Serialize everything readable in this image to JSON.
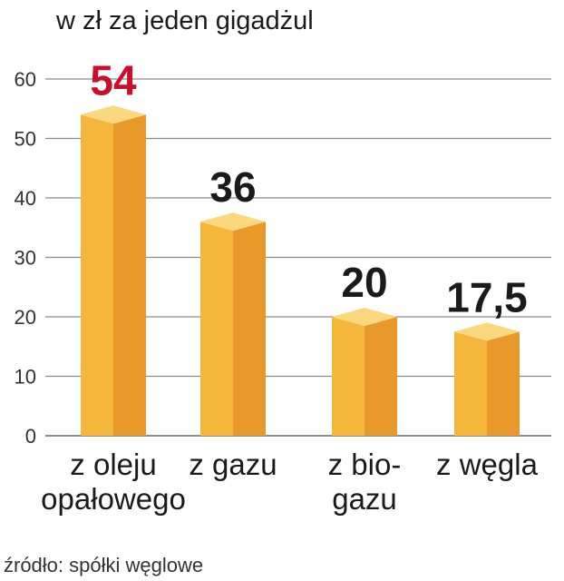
{
  "chart_data": {
    "type": "bar",
    "title": "",
    "subtitle": "w zł za jeden gigadżul",
    "categories": [
      [
        "z oleju",
        "opałowego"
      ],
      [
        "z gazu"
      ],
      [
        "z bio-",
        "gazu"
      ],
      [
        "z węgla"
      ]
    ],
    "values": [
      54,
      36,
      20,
      17.5
    ],
    "value_labels": [
      "54",
      "36",
      "20",
      "17,5"
    ],
    "highlight_index": 0,
    "yticks": [
      "0",
      "10",
      "20",
      "30",
      "40",
      "50",
      "60"
    ],
    "ylim": [
      0,
      60
    ],
    "grid": true,
    "source": "źródło: spółki węglowe"
  },
  "colors": {
    "bar_front": "#f4b73c",
    "bar_side": "#e8992a",
    "bar_top": "#fbd77e",
    "highlight_label": "#c8102e",
    "label": "#1a1a1a",
    "grid": "#8c8c8c"
  }
}
